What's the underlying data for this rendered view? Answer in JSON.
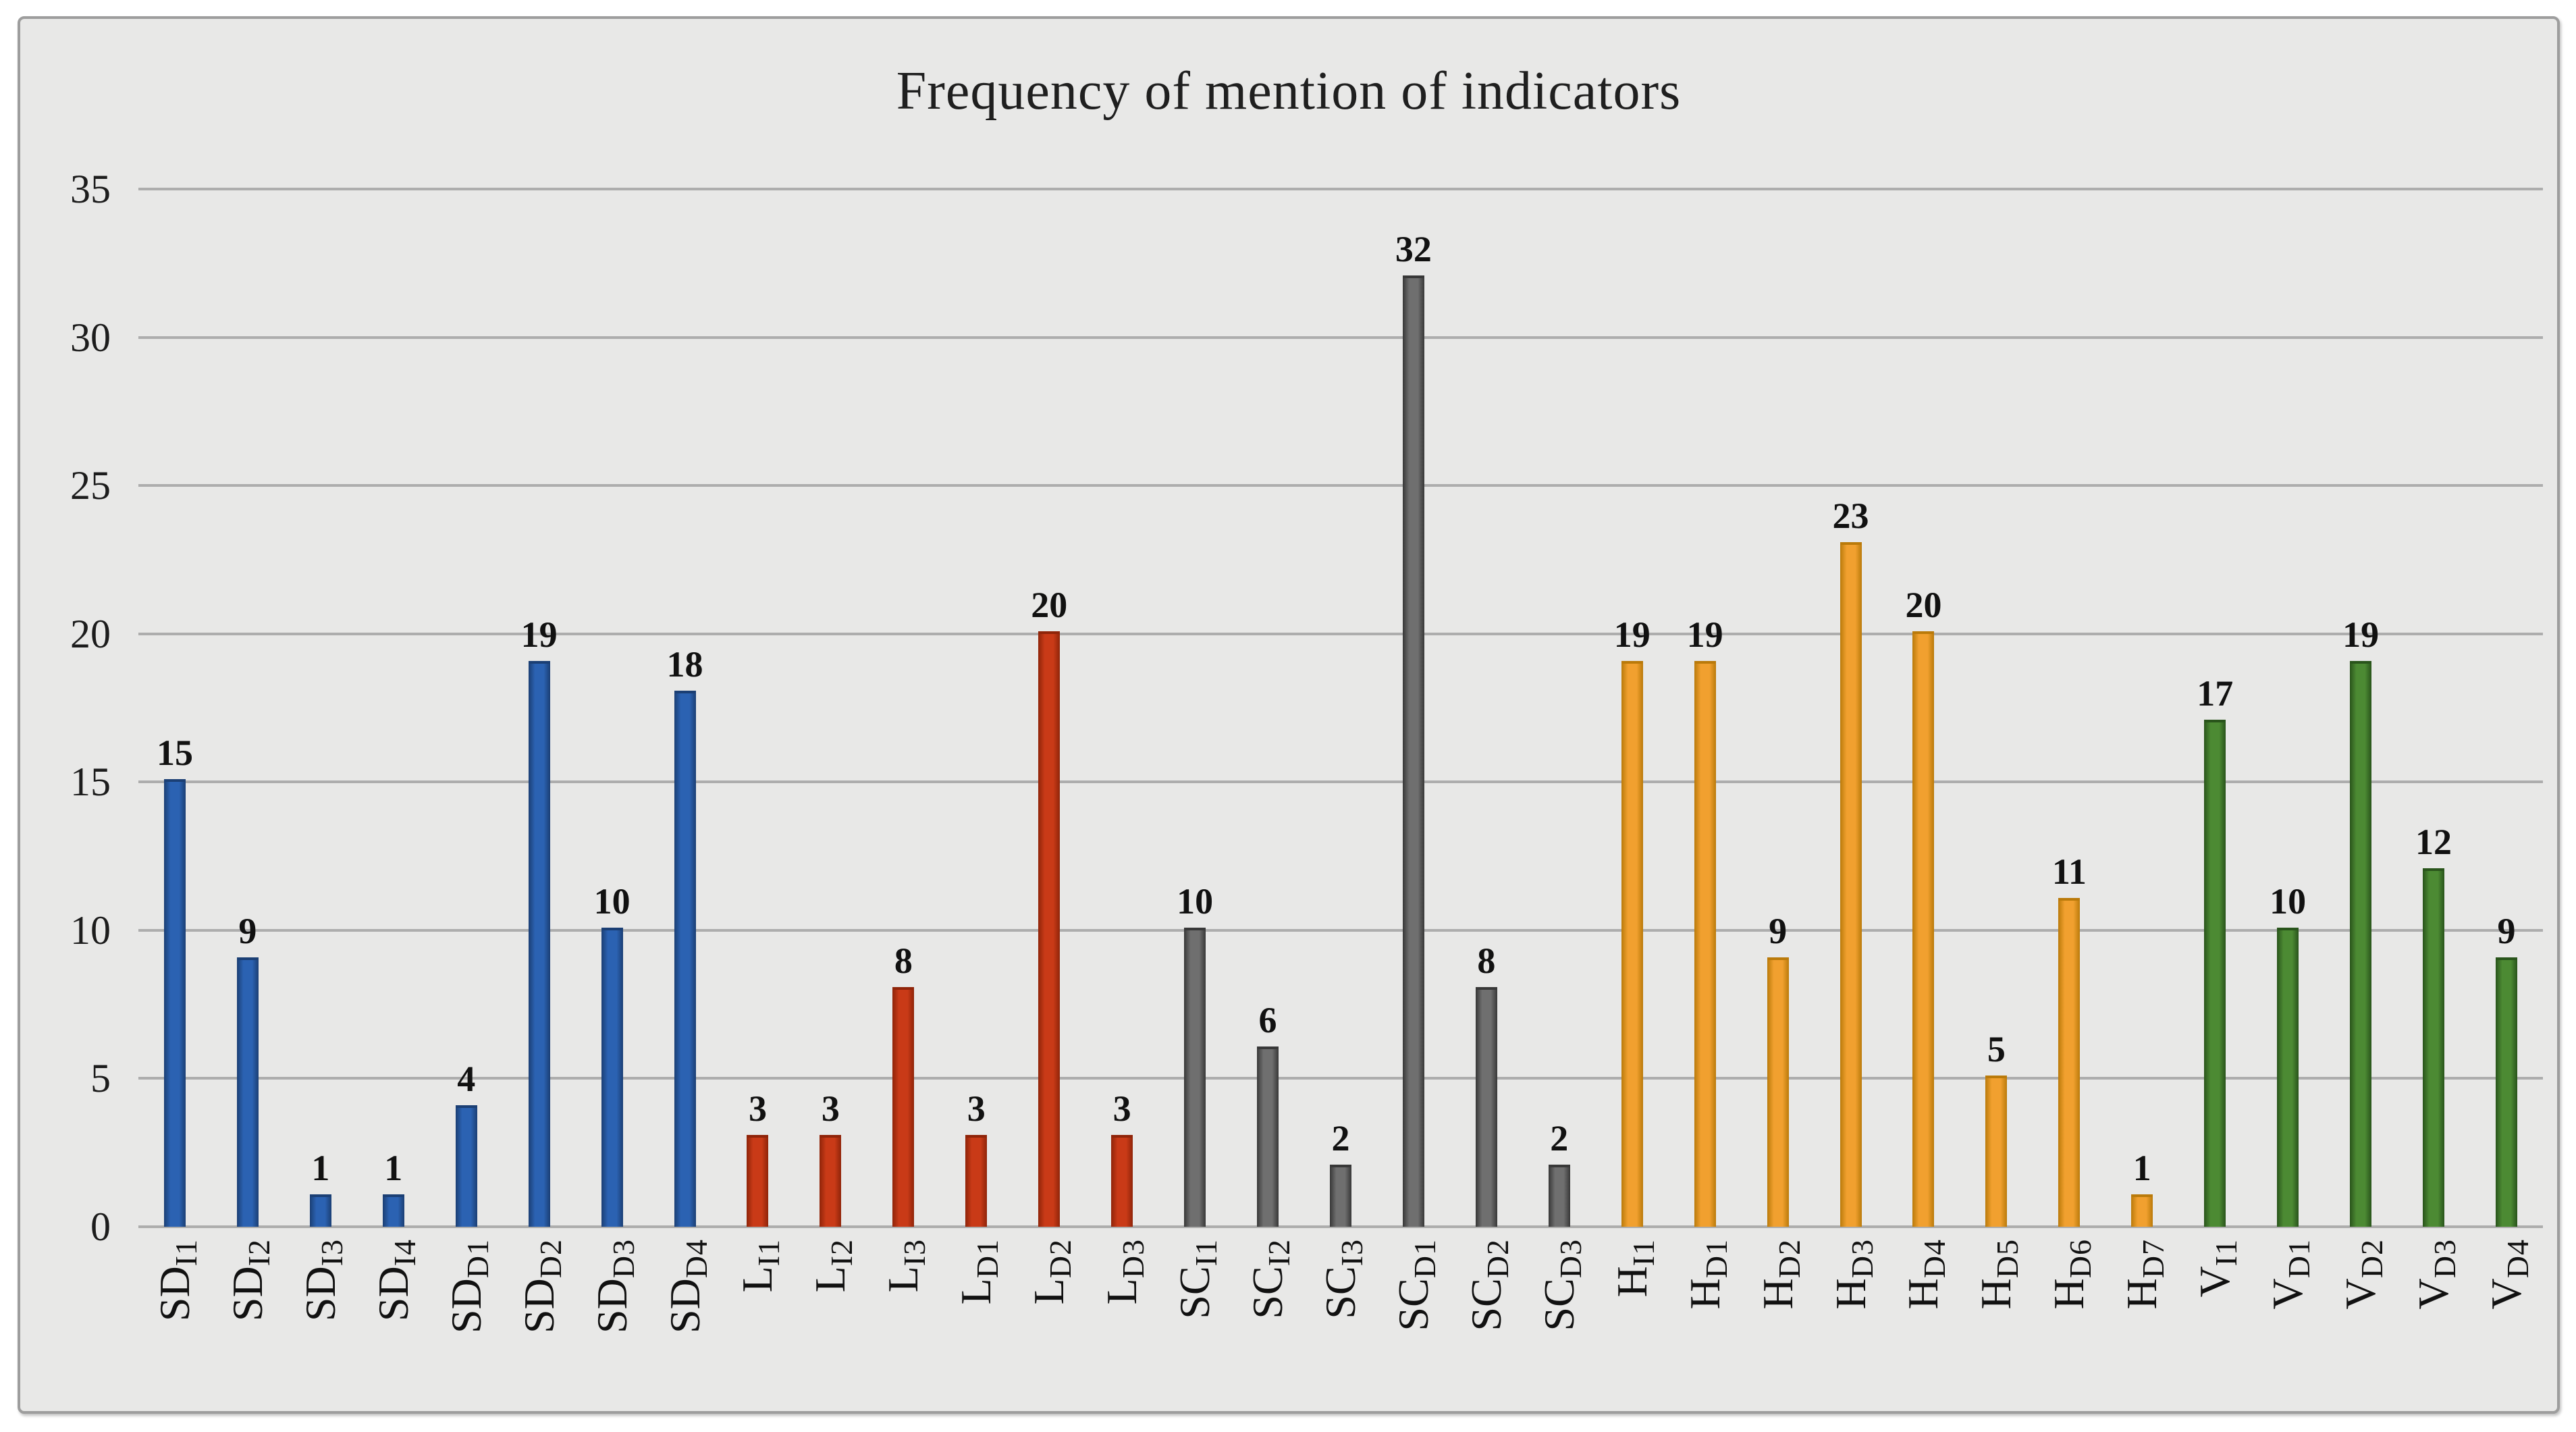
{
  "chart_data": {
    "type": "bar",
    "title": "Frequency of mention of indicators",
    "xlabel": "",
    "ylabel": "",
    "ylim": [
      0,
      35
    ],
    "yticks": [
      0,
      5,
      10,
      15,
      20,
      25,
      30,
      35
    ],
    "grid": true,
    "legend": "none",
    "background_color": "#e8e8e7",
    "gridline_color": "#adadad",
    "group_colors": {
      "SD": {
        "fill": "#2b62b2",
        "edge": "#1b3f74"
      },
      "L": {
        "fill": "#c93a17",
        "edge": "#8f2409"
      },
      "SC": {
        "fill": "#6f6f6f",
        "edge": "#383838"
      },
      "H": {
        "fill": "#f1a02f",
        "edge": "#ba7a0a"
      },
      "V": {
        "fill": "#4c8a33",
        "edge": "#29541b"
      }
    },
    "bars": [
      {
        "label": "SDI1",
        "label_main": "SD",
        "label_sub": "I1",
        "value": 15,
        "group": "SD"
      },
      {
        "label": "SDI2",
        "label_main": "SD",
        "label_sub": "I2",
        "value": 9,
        "group": "SD"
      },
      {
        "label": "SDI3",
        "label_main": "SD",
        "label_sub": "I3",
        "value": 1,
        "group": "SD"
      },
      {
        "label": "SDI4",
        "label_main": "SD",
        "label_sub": "I4",
        "value": 1,
        "group": "SD"
      },
      {
        "label": "SDD1",
        "label_main": "SD",
        "label_sub": "D1",
        "value": 4,
        "group": "SD"
      },
      {
        "label": "SDD2",
        "label_main": "SD",
        "label_sub": "D2",
        "value": 19,
        "group": "SD"
      },
      {
        "label": "SDD3",
        "label_main": "SD",
        "label_sub": "D3",
        "value": 10,
        "group": "SD"
      },
      {
        "label": "SDD4",
        "label_main": "SD",
        "label_sub": "D4",
        "value": 18,
        "group": "SD"
      },
      {
        "label": "LI1",
        "label_main": "L",
        "label_sub": "I1",
        "value": 3,
        "group": "L"
      },
      {
        "label": "LI2",
        "label_main": "L",
        "label_sub": "I2",
        "value": 3,
        "group": "L"
      },
      {
        "label": "LI3",
        "label_main": "L",
        "label_sub": "I3",
        "value": 8,
        "group": "L"
      },
      {
        "label": "LD1",
        "label_main": "L",
        "label_sub": "D1",
        "value": 3,
        "group": "L"
      },
      {
        "label": "LD2",
        "label_main": "L",
        "label_sub": "D2",
        "value": 20,
        "group": "L"
      },
      {
        "label": "LD3",
        "label_main": "L",
        "label_sub": "D3",
        "value": 3,
        "group": "L"
      },
      {
        "label": "SCI1",
        "label_main": "SC",
        "label_sub": "I1",
        "value": 10,
        "group": "SC"
      },
      {
        "label": "SCI2",
        "label_main": "SC",
        "label_sub": "I2",
        "value": 6,
        "group": "SC"
      },
      {
        "label": "SCI3",
        "label_main": "SC",
        "label_sub": "I3",
        "value": 2,
        "group": "SC"
      },
      {
        "label": "SCD1",
        "label_main": "SC",
        "label_sub": "D1",
        "value": 32,
        "group": "SC"
      },
      {
        "label": "SCD2",
        "label_main": "SC",
        "label_sub": "D2",
        "value": 8,
        "group": "SC"
      },
      {
        "label": "SCD3",
        "label_main": "SC",
        "label_sub": "D3",
        "value": 2,
        "group": "SC"
      },
      {
        "label": "HI1",
        "label_main": "H",
        "label_sub": "I1",
        "value": 19,
        "group": "H"
      },
      {
        "label": "HD1",
        "label_main": "H",
        "label_sub": "D1",
        "value": 19,
        "group": "H"
      },
      {
        "label": "HD2",
        "label_main": "H",
        "label_sub": "D2",
        "value": 9,
        "group": "H"
      },
      {
        "label": "HD3",
        "label_main": "H",
        "label_sub": "D3",
        "value": 23,
        "group": "H"
      },
      {
        "label": "HD4",
        "label_main": "H",
        "label_sub": "D4",
        "value": 20,
        "group": "H"
      },
      {
        "label": "HD5",
        "label_main": "H",
        "label_sub": "D5",
        "value": 5,
        "group": "H"
      },
      {
        "label": "HD6",
        "label_main": "H",
        "label_sub": "D6",
        "value": 11,
        "group": "H"
      },
      {
        "label": "HD7",
        "label_main": "H",
        "label_sub": "D7",
        "value": 1,
        "group": "H"
      },
      {
        "label": "VI1",
        "label_main": "V",
        "label_sub": "I1",
        "value": 17,
        "group": "V"
      },
      {
        "label": "VD1",
        "label_main": "V",
        "label_sub": "D1",
        "value": 10,
        "group": "V"
      },
      {
        "label": "VD2",
        "label_main": "V",
        "label_sub": "D2",
        "value": 19,
        "group": "V"
      },
      {
        "label": "VD3",
        "label_main": "V",
        "label_sub": "D3",
        "value": 12,
        "group": "V"
      },
      {
        "label": "VD4",
        "label_main": "V",
        "label_sub": "D4",
        "value": 9,
        "group": "V"
      }
    ]
  }
}
